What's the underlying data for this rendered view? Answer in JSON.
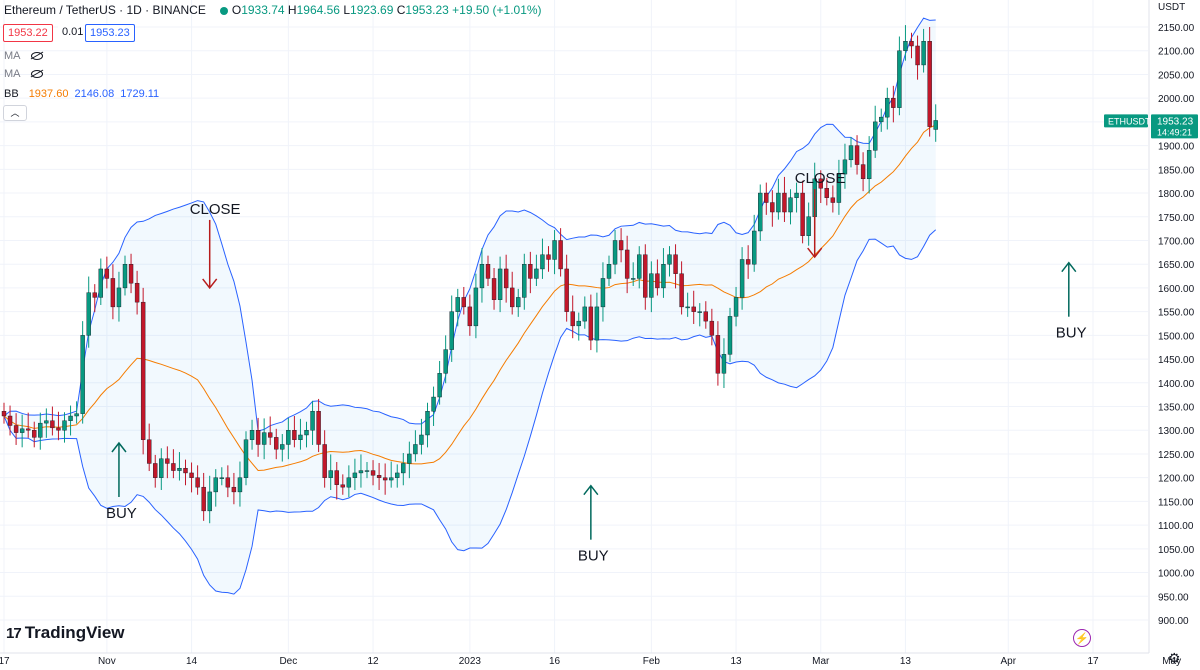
{
  "header": {
    "symbol": "Ethereum / TetherUS · 1D · BINANCE",
    "o_label": "O",
    "o_value": "1933.74",
    "h_label": "H",
    "h_value": "1964.56",
    "l_label": "L",
    "l_value": "1923.69",
    "c_label": "C",
    "c_value": "1953.23",
    "change": "+19.50 (+1.01%)",
    "bid": "1953.22",
    "spread": "0.01",
    "ask": "1953.23"
  },
  "indicators": {
    "ma1": "MA",
    "ma2": "MA",
    "bb_label": "BB",
    "bb_basis": "1937.60",
    "bb_upper": "2146.08",
    "bb_lower": "1729.11"
  },
  "collapse_icon": "chevron-up-icon",
  "branding": {
    "name": "TradingView"
  },
  "price_axis": {
    "currency": "USDT"
  },
  "colors": {
    "up": "#089981",
    "down": "#c2172a",
    "basis": "#f57c00",
    "band": "#2962ff",
    "annotation": "#b71c1c",
    "buy_arrow": "#00695c"
  },
  "chart_data": {
    "type": "candlestick",
    "symbol": "ETHUSDT",
    "interval": "1D",
    "last_price": "1953.23",
    "countdown": "14:49:21",
    "ylim": [
      890,
      2200
    ],
    "y_ticks": [
      900,
      950,
      1000,
      1050,
      1100,
      1150,
      1200,
      1250,
      1300,
      1350,
      1400,
      1450,
      1500,
      1550,
      1600,
      1650,
      1700,
      1750,
      1800,
      1850,
      1900,
      1950,
      2000,
      2050,
      2100,
      2150
    ],
    "x_ticks": [
      "17",
      "Nov",
      "14",
      "Dec",
      "12",
      "2023",
      "16",
      "Feb",
      "13",
      "Mar",
      "13",
      "Apr",
      "17",
      "May"
    ],
    "x_tick_bar_index": [
      0,
      17,
      31,
      47,
      61,
      77,
      91,
      107,
      121,
      135,
      149,
      166,
      180,
      193
    ],
    "series_close": [
      1330,
      1310,
      1295,
      1303,
      1300,
      1285,
      1315,
      1320,
      1305,
      1300,
      1320,
      1330,
      1335,
      1500,
      1590,
      1580,
      1640,
      1620,
      1560,
      1600,
      1650,
      1610,
      1570,
      1280,
      1230,
      1200,
      1240,
      1230,
      1215,
      1220,
      1210,
      1200,
      1180,
      1130,
      1170,
      1200,
      1200,
      1180,
      1170,
      1200,
      1280,
      1300,
      1270,
      1295,
      1285,
      1260,
      1270,
      1300,
      1280,
      1290,
      1300,
      1340,
      1270,
      1200,
      1215,
      1185,
      1180,
      1200,
      1210,
      1215,
      1215,
      1205,
      1200,
      1195,
      1200,
      1210,
      1230,
      1250,
      1270,
      1290,
      1340,
      1370,
      1420,
      1470,
      1550,
      1580,
      1560,
      1520,
      1600,
      1650,
      1620,
      1575,
      1640,
      1600,
      1560,
      1580,
      1650,
      1620,
      1640,
      1670,
      1660,
      1700,
      1640,
      1550,
      1520,
      1530,
      1560,
      1490,
      1560,
      1620,
      1650,
      1700,
      1680,
      1620,
      1620,
      1670,
      1580,
      1630,
      1600,
      1650,
      1670,
      1630,
      1560,
      1560,
      1550,
      1550,
      1530,
      1500,
      1420,
      1460,
      1540,
      1580,
      1660,
      1650,
      1720,
      1800,
      1780,
      1760,
      1800,
      1760,
      1790,
      1800,
      1710,
      1750,
      1830,
      1810,
      1790,
      1780,
      1840,
      1870,
      1900,
      1860,
      1830,
      1890,
      1950,
      1960,
      2000,
      1980,
      2100,
      2120,
      2110,
      2070,
      2120,
      1940,
      1953
    ],
    "series_open": [
      1340,
      1330,
      1310,
      1295,
      1303,
      1300,
      1285,
      1315,
      1320,
      1305,
      1300,
      1320,
      1330,
      1335,
      1500,
      1590,
      1580,
      1640,
      1620,
      1560,
      1600,
      1650,
      1610,
      1570,
      1280,
      1230,
      1200,
      1240,
      1230,
      1215,
      1220,
      1210,
      1200,
      1180,
      1130,
      1170,
      1200,
      1200,
      1180,
      1170,
      1200,
      1280,
      1300,
      1270,
      1295,
      1285,
      1260,
      1270,
      1300,
      1280,
      1290,
      1300,
      1340,
      1270,
      1200,
      1215,
      1185,
      1180,
      1200,
      1210,
      1215,
      1215,
      1205,
      1200,
      1195,
      1200,
      1210,
      1230,
      1250,
      1270,
      1290,
      1340,
      1370,
      1420,
      1470,
      1550,
      1580,
      1560,
      1520,
      1600,
      1650,
      1620,
      1575,
      1640,
      1600,
      1560,
      1580,
      1650,
      1620,
      1640,
      1670,
      1660,
      1700,
      1640,
      1550,
      1520,
      1530,
      1560,
      1490,
      1560,
      1620,
      1650,
      1700,
      1680,
      1620,
      1620,
      1670,
      1580,
      1630,
      1600,
      1650,
      1670,
      1630,
      1560,
      1560,
      1550,
      1550,
      1530,
      1500,
      1420,
      1460,
      1540,
      1580,
      1660,
      1650,
      1720,
      1800,
      1780,
      1760,
      1800,
      1760,
      1790,
      1800,
      1710,
      1750,
      1830,
      1810,
      1790,
      1780,
      1840,
      1870,
      1900,
      1860,
      1830,
      1890,
      1950,
      1960,
      2000,
      1980,
      2100,
      2120,
      2110,
      2070,
      2120,
      1934
    ],
    "annotations": [
      {
        "label": "BUY",
        "type": "buy",
        "bar": 19,
        "price": 1290
      },
      {
        "label": "CLOSE",
        "type": "close",
        "bar": 34,
        "price": 1600
      },
      {
        "label": "BUY",
        "type": "buy",
        "bar": 97,
        "price": 1200
      },
      {
        "label": "CLOSE",
        "type": "close",
        "bar": 134,
        "price": 1665
      },
      {
        "label": "BUY",
        "type": "buy",
        "bar": 176,
        "price": 1670
      }
    ]
  }
}
